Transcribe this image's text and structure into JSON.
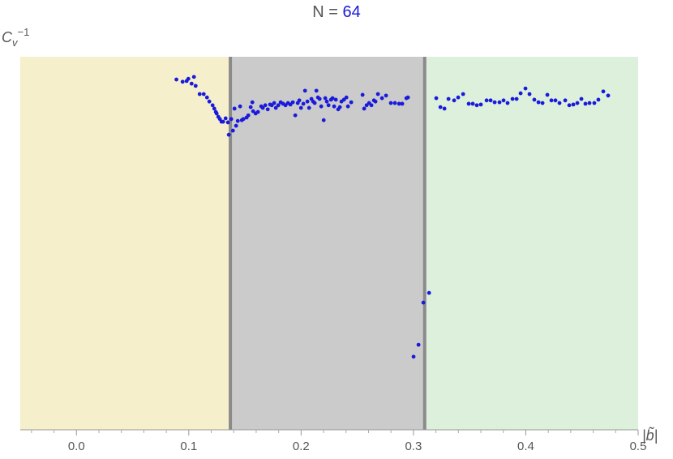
{
  "chart_data": {
    "type": "scatter",
    "title": "N = ",
    "title_value": 64,
    "title_value_color": "#1a1adb",
    "ylabel": {
      "base": "C",
      "sub": "v",
      "sup": "−1"
    },
    "xlabel": "|b̃|",
    "xlim": [
      -0.05,
      0.5
    ],
    "ylim": [
      0,
      1
    ],
    "xticks": [
      {
        "value": 0,
        "label": "0.0"
      },
      0.1,
      0.2,
      0.3,
      0.4,
      0.5
    ],
    "xminorticks": [
      -0.04,
      -0.02,
      0.02,
      0.04,
      0.06,
      0.08,
      0.12,
      0.14,
      0.16,
      0.18,
      0.22,
      0.24,
      0.26,
      0.28,
      0.32,
      0.34,
      0.36,
      0.38,
      0.42,
      0.44,
      0.46,
      0.48
    ],
    "regions": [
      {
        "from": -0.05,
        "to": 0.137,
        "color": "#f5efcc"
      },
      {
        "from": 0.137,
        "to": 0.31,
        "color": "#cbcbcb"
      },
      {
        "from": 0.31,
        "to": 0.5,
        "color": "#dcf0dc"
      }
    ],
    "boundary_color": "#8a8a8a",
    "color": "#1a1adb",
    "x": [
      0.089,
      0.0945,
      0.0981,
      0.0996,
      0.1025,
      0.1046,
      0.1061,
      0.1097,
      0.1133,
      0.1162,
      0.1183,
      0.1212,
      0.1227,
      0.1241,
      0.1248,
      0.1263,
      0.1277,
      0.1291,
      0.1306,
      0.1328,
      0.1349,
      0.1356,
      0.1378,
      0.1393,
      0.1407,
      0.1421,
      0.1436,
      0.1457,
      0.1472,
      0.1486,
      0.1515,
      0.153,
      0.1551,
      0.1566,
      0.1573,
      0.1595,
      0.1616,
      0.1645,
      0.1659,
      0.1681,
      0.1703,
      0.1724,
      0.1739,
      0.176,
      0.1775,
      0.1797,
      0.1818,
      0.184,
      0.1861,
      0.1883,
      0.1905,
      0.1926,
      0.1948,
      0.197,
      0.1984,
      0.1999,
      0.202,
      0.2035,
      0.2056,
      0.2071,
      0.2092,
      0.2107,
      0.2121,
      0.2136,
      0.215,
      0.2165,
      0.2179,
      0.2201,
      0.2215,
      0.2229,
      0.2244,
      0.2266,
      0.228,
      0.2294,
      0.2309,
      0.233,
      0.2345,
      0.2359,
      0.2381,
      0.2403,
      0.2417,
      0.2446,
      0.2547,
      0.2561,
      0.2583,
      0.2605,
      0.2626,
      0.2648,
      0.2662,
      0.2684,
      0.272,
      0.2756,
      0.2799,
      0.2835,
      0.2872,
      0.29,
      0.2937,
      0.2951,
      0.3001,
      0.3045,
      0.3088,
      0.3139,
      0.3203,
      0.324,
      0.3276,
      0.3312,
      0.3362,
      0.3398,
      0.3442,
      0.3492,
      0.3528,
      0.3564,
      0.36,
      0.3651,
      0.3687,
      0.3723,
      0.3766,
      0.3802,
      0.3838,
      0.3882,
      0.3918,
      0.3954,
      0.3997,
      0.4033,
      0.4076,
      0.4113,
      0.4149,
      0.4192,
      0.4228,
      0.4264,
      0.43,
      0.4351,
      0.4387,
      0.4423,
      0.4459,
      0.4495,
      0.4531,
      0.4567,
      0.461,
      0.4646,
      0.469,
      0.4733
    ],
    "y": [
      0.939,
      0.933,
      0.935,
      0.941,
      0.928,
      0.946,
      0.922,
      0.9,
      0.9,
      0.891,
      0.88,
      0.87,
      0.861,
      0.852,
      0.848,
      0.839,
      0.833,
      0.826,
      0.826,
      0.835,
      0.824,
      0.791,
      0.833,
      0.802,
      0.861,
      0.815,
      0.828,
      0.867,
      0.83,
      0.833,
      0.837,
      0.843,
      0.865,
      0.878,
      0.854,
      0.848,
      0.852,
      0.867,
      0.863,
      0.87,
      0.859,
      0.872,
      0.87,
      0.876,
      0.863,
      0.87,
      0.878,
      0.874,
      0.87,
      0.876,
      0.872,
      0.878,
      0.843,
      0.876,
      0.883,
      0.863,
      0.874,
      0.909,
      0.88,
      0.863,
      0.887,
      0.88,
      0.876,
      0.909,
      0.891,
      0.887,
      0.867,
      0.83,
      0.889,
      0.88,
      0.87,
      0.885,
      0.889,
      0.867,
      0.885,
      0.859,
      0.865,
      0.88,
      0.885,
      0.891,
      0.867,
      0.878,
      0.898,
      0.861,
      0.87,
      0.876,
      0.87,
      0.883,
      0.88,
      0.9,
      0.889,
      0.896,
      0.876,
      0.876,
      0.874,
      0.874,
      0.889,
      0.891,
      0.196,
      0.228,
      0.341,
      0.367,
      0.889,
      0.865,
      0.861,
      0.887,
      0.883,
      0.891,
      0.9,
      0.874,
      0.874,
      0.87,
      0.872,
      0.883,
      0.883,
      0.878,
      0.878,
      0.883,
      0.876,
      0.887,
      0.887,
      0.902,
      0.915,
      0.9,
      0.885,
      0.878,
      0.876,
      0.898,
      0.883,
      0.883,
      0.876,
      0.883,
      0.87,
      0.872,
      0.876,
      0.887,
      0.874,
      0.876,
      0.876,
      0.885,
      0.907,
      0.896
    ]
  }
}
